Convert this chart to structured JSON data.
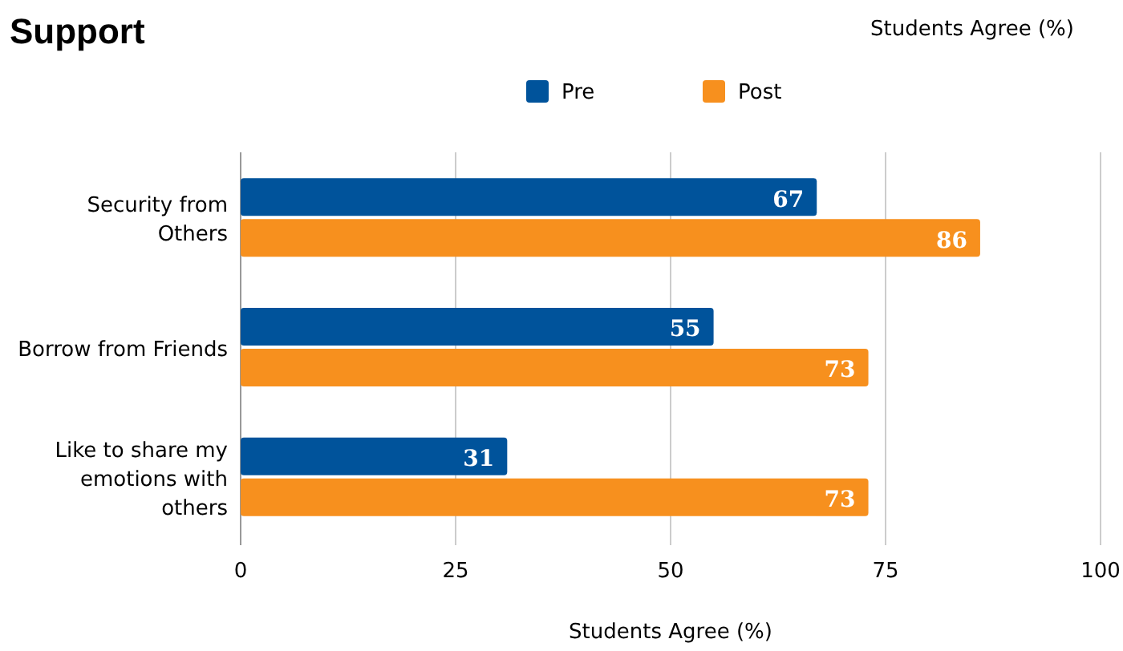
{
  "chart_data": {
    "type": "bar",
    "orientation": "horizontal",
    "title": "Support",
    "subtitle": "Students Agree (%)",
    "xlabel": "Students Agree (%)",
    "categories": [
      "Security from Others",
      "Borrow from Friends",
      "Like to share my emotions with others"
    ],
    "series": [
      {
        "name": "Pre",
        "color": "#00539b",
        "values": [
          67,
          55,
          31
        ]
      },
      {
        "name": "Post",
        "color": "#f7901e",
        "values": [
          86,
          73,
          73
        ]
      }
    ],
    "xlim": [
      0,
      100
    ],
    "xticks": [
      0,
      25,
      50,
      75,
      100
    ],
    "grid": "x",
    "legend": "top",
    "data_labels": true
  }
}
